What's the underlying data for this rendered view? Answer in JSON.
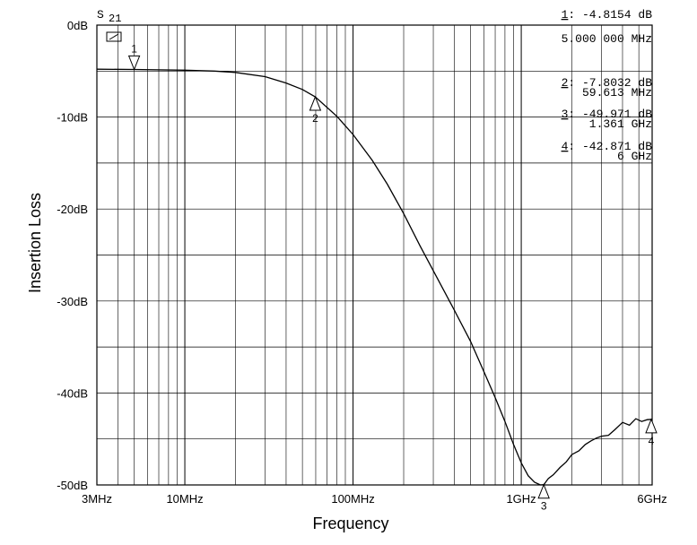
{
  "chart_data": {
    "type": "line",
    "xscale": "log",
    "xlabel": "Frequency",
    "ylabel": "Insertion Loss",
    "xlim": [
      3000000,
      6000000000
    ],
    "ylim": [
      -50,
      0
    ],
    "grid": true,
    "trace_label": {
      "name": "S",
      "sub": "21"
    },
    "y_ticks": [
      {
        "value": 0,
        "label": "0dB"
      },
      {
        "value": -10,
        "label": "-10dB"
      },
      {
        "value": -20,
        "label": "-20dB"
      },
      {
        "value": -30,
        "label": "-30dB"
      },
      {
        "value": -40,
        "label": "-40dB"
      },
      {
        "value": -50,
        "label": "-50dB"
      }
    ],
    "x_ticks": [
      {
        "value": 3000000,
        "label": "3MHz"
      },
      {
        "value": 10000000,
        "label": "10MHz"
      },
      {
        "value": 100000000,
        "label": "100MHz"
      },
      {
        "value": 1000000000,
        "label": "1GHz"
      },
      {
        "value": 6000000000,
        "label": "6GHz"
      }
    ],
    "series": [
      {
        "name": "S21",
        "x": [
          3000000,
          5000000,
          10000000,
          15000000,
          20000000,
          30000000,
          40000000,
          50000000,
          59613000,
          80000000,
          100000000,
          130000000,
          160000000,
          200000000,
          250000000,
          300000000,
          400000000,
          500000000,
          600000000,
          700000000,
          800000000,
          900000000,
          1000000000,
          1100000000,
          1200000000,
          1300000000,
          1361000000,
          1450000000,
          1550000000,
          1700000000,
          1850000000,
          2000000000,
          2200000000,
          2400000000,
          2600000000,
          2800000000,
          3000000000,
          3300000000,
          3600000000,
          4000000000,
          4400000000,
          4800000000,
          5200000000,
          5600000000,
          6000000000
        ],
        "values": [
          -4.8,
          -4.82,
          -4.9,
          -5.0,
          -5.15,
          -5.6,
          -6.3,
          -7.0,
          -7.8,
          -9.9,
          -11.9,
          -14.7,
          -17.3,
          -20.5,
          -24.0,
          -26.7,
          -31.0,
          -34.4,
          -37.7,
          -40.5,
          -43.1,
          -45.6,
          -47.6,
          -49.0,
          -49.7,
          -50.0,
          -49.97,
          -49.3,
          -48.9,
          -48.1,
          -47.5,
          -46.7,
          -46.3,
          -45.6,
          -45.2,
          -44.9,
          -44.7,
          -44.6,
          -44.0,
          -43.2,
          -43.5,
          -42.8,
          -43.1,
          -42.9,
          -42.87
        ]
      }
    ],
    "markers": [
      {
        "id": "1",
        "x": 5000000,
        "y": -4.8154,
        "amp": "-4.8154 dB",
        "freq": "5.000 000 MHz",
        "pointer": "down"
      },
      {
        "id": "2",
        "x": 59613000,
        "y": -7.8032,
        "amp": "-7.8032 dB",
        "freq": "59.613 MHz",
        "pointer": "up"
      },
      {
        "id": "3",
        "x": 1361000000,
        "y": -49.971,
        "amp": "-49.971 dB",
        "freq": "1.361 GHz",
        "pointer": "up"
      },
      {
        "id": "4",
        "x": 6000000000,
        "y": -42.871,
        "amp": "-42.871 dB",
        "freq": "6 GHz",
        "pointer": "up"
      }
    ]
  }
}
